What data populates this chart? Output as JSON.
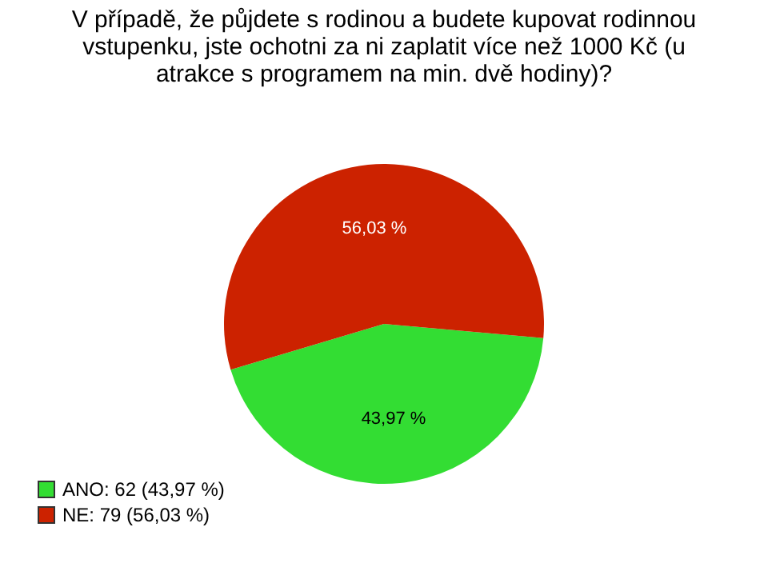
{
  "chart_data": {
    "type": "pie",
    "title": "V případě, že půjdete s rodinou a budete kupovat rodinnou vstupenku, jste ochotni za ni zaplatit více než 1000 Kč (u atrakce s programem na min. dvě hodiny)?",
    "categories": [
      "ANO: 62 (43,97 %)",
      "NE: 79 (56,03 %)"
    ],
    "values": [
      43.97,
      56.03
    ],
    "value_labels": [
      "43,97 %",
      "56,03 %"
    ],
    "colors": [
      "#33dd33",
      "#cc2200"
    ],
    "legend": "bottom left"
  }
}
